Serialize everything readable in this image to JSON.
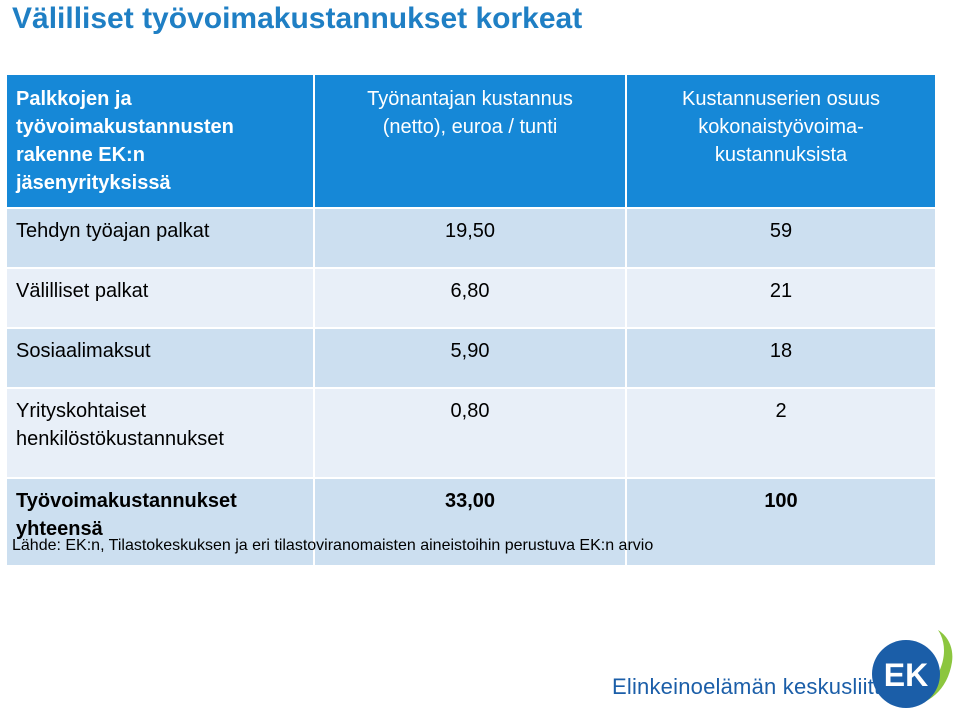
{
  "title": "Välilliset työvoimakustannukset korkeat",
  "table": {
    "header": {
      "col1": [
        "Palkkojen ja",
        "työvoimakustannusten",
        "rakenne EK:n",
        "jäsenyrityksissä"
      ],
      "col2": [
        "Työnantajan kustannus",
        "(netto), euroa / tunti"
      ],
      "col3": [
        "Kustannuserien osuus",
        "kokonaistyövoima-",
        "kustannuksista"
      ]
    },
    "rows": [
      {
        "label": [
          "Tehdyn työajan palkat"
        ],
        "cost": "19,50",
        "share": "59"
      },
      {
        "label": [
          "Välilliset palkat"
        ],
        "cost": "6,80",
        "share": "21"
      },
      {
        "label": [
          "Sosiaalimaksut"
        ],
        "cost": "5,90",
        "share": "18"
      },
      {
        "label": [
          "Yrityskohtaiset",
          "henkilöstökustannukset"
        ],
        "cost": "0,80",
        "share": "2"
      },
      {
        "label": [
          "Työvoimakustannukset",
          "yhteensä"
        ],
        "cost": "33,00",
        "share": "100"
      }
    ]
  },
  "source": "Lähde: EK:n, Tilastokeskuksen ja eri tilastoviranomaisten aineistoihin perustuva EK:n arvio",
  "footer": {
    "brand_text": "Elinkeinoelämän keskusliitto",
    "logo_text": "EK",
    "logo_icon": "ek-logo-icon"
  },
  "colors": {
    "title": "#1f7fc4",
    "header_bg": "#1688d7",
    "row_band": "#ccdff0",
    "row_plain": "#e8eff8",
    "logo_blue": "#1b5ea8",
    "logo_green": "#8cc63f"
  }
}
